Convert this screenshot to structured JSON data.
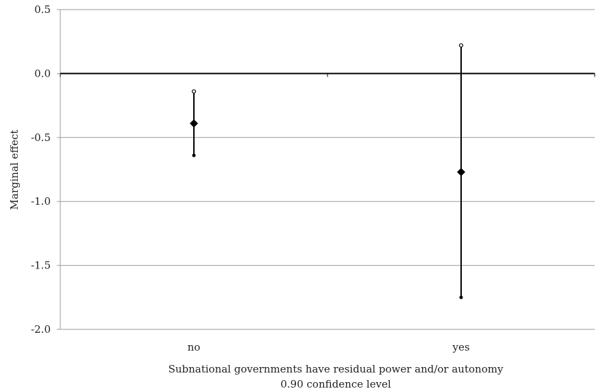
{
  "chart_data": {
    "type": "scatter",
    "subtype": "point-estimate-with-confidence-intervals",
    "categories": [
      "no",
      "yes"
    ],
    "series": [
      {
        "estimates": [
          -0.39,
          -0.77
        ],
        "lower": [
          -0.64,
          -1.75
        ],
        "upper": [
          -0.14,
          0.22
        ]
      }
    ],
    "ylabel": "Marginal effect",
    "xlabel_lines": [
      "Subnational governments have residual power and/or autonomy",
      "0.90 confidence level"
    ],
    "ylim": [
      -2.0,
      0.5
    ],
    "yticks": [
      0.5,
      0.0,
      -0.5,
      -1.0,
      -1.5,
      -2.0
    ],
    "ytick_labels": [
      "0.5",
      "0.0",
      "-0.5",
      "-1.0",
      "-1.5",
      "-2.0"
    ],
    "reference_line": 0.0,
    "grid": true,
    "colors": {
      "marker": "#000000",
      "gridline": "#999999",
      "zero_line": "#000000",
      "text": "#222222"
    }
  }
}
